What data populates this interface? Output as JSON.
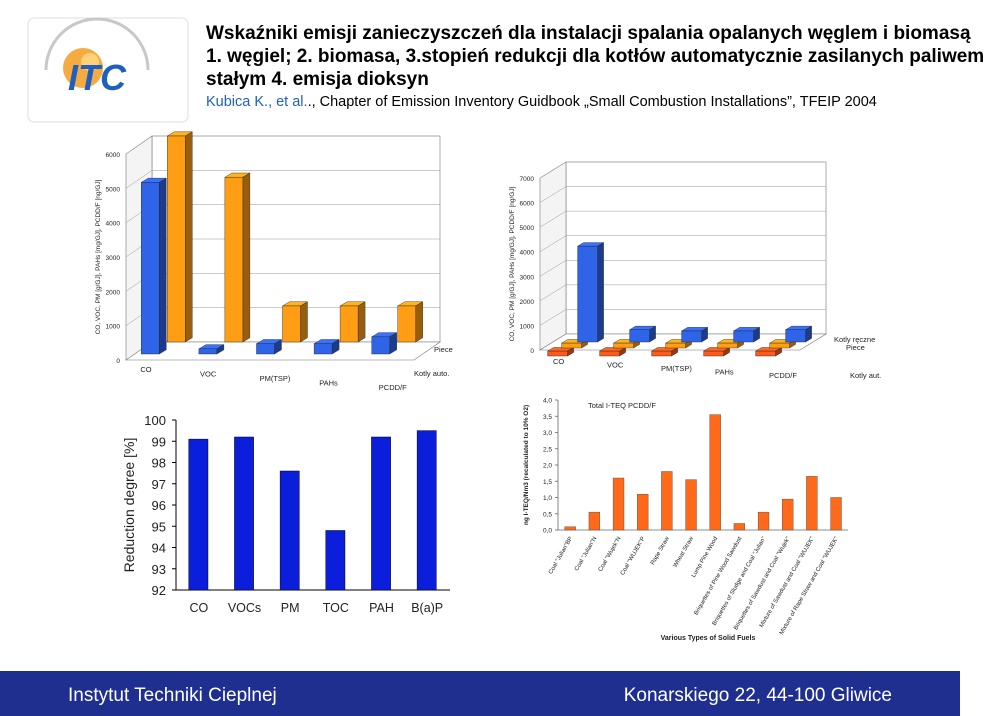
{
  "header": {
    "title_lines": [
      "Wskaźniki emisji zanieczyszczeń dla instalacji spalania opalanych węglem i biomasą",
      "1. węgiel; 2. biomasa, 3.stopień redukcji dla kotłów automatycznie zasilanych paliwem",
      "stałym 4. emisja dioksyn"
    ],
    "reference_author": "Kubica K., et al.",
    "reference_rest": "., Chapter of Emission Inventory Guidbook „Small Combustion Installations”, TFEIP 2004"
  },
  "logo": {
    "text": "ITC",
    "colors": {
      "orange": "#f39c1f",
      "blue": "#1f5fbf"
    }
  },
  "footer": {
    "left": "Instytut Techniki Cieplnej",
    "right": "Konarskiego 22, 44-100 Gliwice",
    "background": "#1e2f8f"
  },
  "chart_data": [
    {
      "type": "bar",
      "style": "3d",
      "title": "",
      "ylabel": "CO, VOC, PM [g/GJ], PAHs [mg/GJ], PCDD/F [ng/GJ]",
      "ylim": [
        0,
        6000
      ],
      "yticks": [
        0,
        1000,
        2000,
        3000,
        4000,
        5000,
        6000
      ],
      "categories": [
        "CO",
        "VOC",
        "PM(TSP)",
        "PAHs",
        "PCDD/F"
      ],
      "series": [
        {
          "name": "Kotly auto.",
          "color": "#2f63e8",
          "values": [
            5000,
            150,
            300,
            300,
            500
          ]
        },
        {
          "name": "Piece",
          "color": "#ff9d15",
          "values": [
            6000,
            4800,
            1050,
            1050,
            1050
          ]
        }
      ]
    },
    {
      "type": "bar",
      "style": "3d",
      "title": "",
      "ylabel": "CO, VOC, PM [g/GJ], PAHs [mg/GJ], PCDD/F [ng/GJ]",
      "ylim": [
        0,
        7000
      ],
      "yticks": [
        0,
        1000,
        2000,
        3000,
        4000,
        5000,
        6000,
        7000
      ],
      "categories": [
        "CO",
        "VOC",
        "PM(TSP)",
        "PAHs",
        "PCDD/F"
      ],
      "series": [
        {
          "name": "Kotly aut.",
          "color": "#2f63e8",
          "values": [
            3900,
            500,
            450,
            450,
            500
          ]
        },
        {
          "name": "Piece",
          "color": "#ff9d15",
          "values": [
            200,
            200,
            200,
            200,
            200
          ]
        },
        {
          "name": "Kotly ręczne",
          "color": "#ff5a1a",
          "values": [
            200,
            200,
            200,
            200,
            200
          ]
        }
      ]
    },
    {
      "type": "bar",
      "title": "",
      "ylabel": "Reduction degree [%]",
      "ylim": [
        92,
        100
      ],
      "yticks": [
        92,
        93,
        94,
        95,
        96,
        97,
        98,
        99,
        100
      ],
      "categories": [
        "CO",
        "VOCs",
        "PM",
        "TOC",
        "PAH",
        "B(a)P"
      ],
      "values": [
        99.1,
        99.2,
        97.6,
        94.8,
        99.2,
        99.5
      ],
      "color": "#0b1edc"
    },
    {
      "type": "bar",
      "title": "Total I-TEQ PCDD/F",
      "xlabel": "Various Types of Solid Fuels",
      "ylabel": "ng I-TEQ/Nm3 (recalculated to 10% O2)",
      "ylim": [
        0,
        4.0
      ],
      "yticks": [
        "0,0",
        "0,5",
        "1,0",
        "1,5",
        "2,0",
        "2,5",
        "3,0",
        "3,5",
        "4,0"
      ],
      "categories": [
        "Coal \"Julian\"BP",
        "Coal \"Julian\"N",
        "Coal \"Wujek\"N",
        "Coal \"WUJEK\"P",
        "Rape Straw",
        "Wheat Straw",
        "Lump Pine Wood",
        "Briquettes of Pine Wood Sawdust",
        "Briquettes of Sludge and Coal \"Julian\"",
        "Briquettes of Sawdust and Coal \"Wujek\"",
        "Mixture of Sawdust and Coal \"WUJEK\"",
        "Mixture of Rape Straw and Coal \"WUJEK\""
      ],
      "values": [
        0.1,
        0.55,
        1.6,
        1.1,
        1.8,
        1.55,
        3.55,
        0.2,
        0.55,
        0.95,
        1.65,
        1.0
      ],
      "color": "#ff6a1a"
    }
  ]
}
